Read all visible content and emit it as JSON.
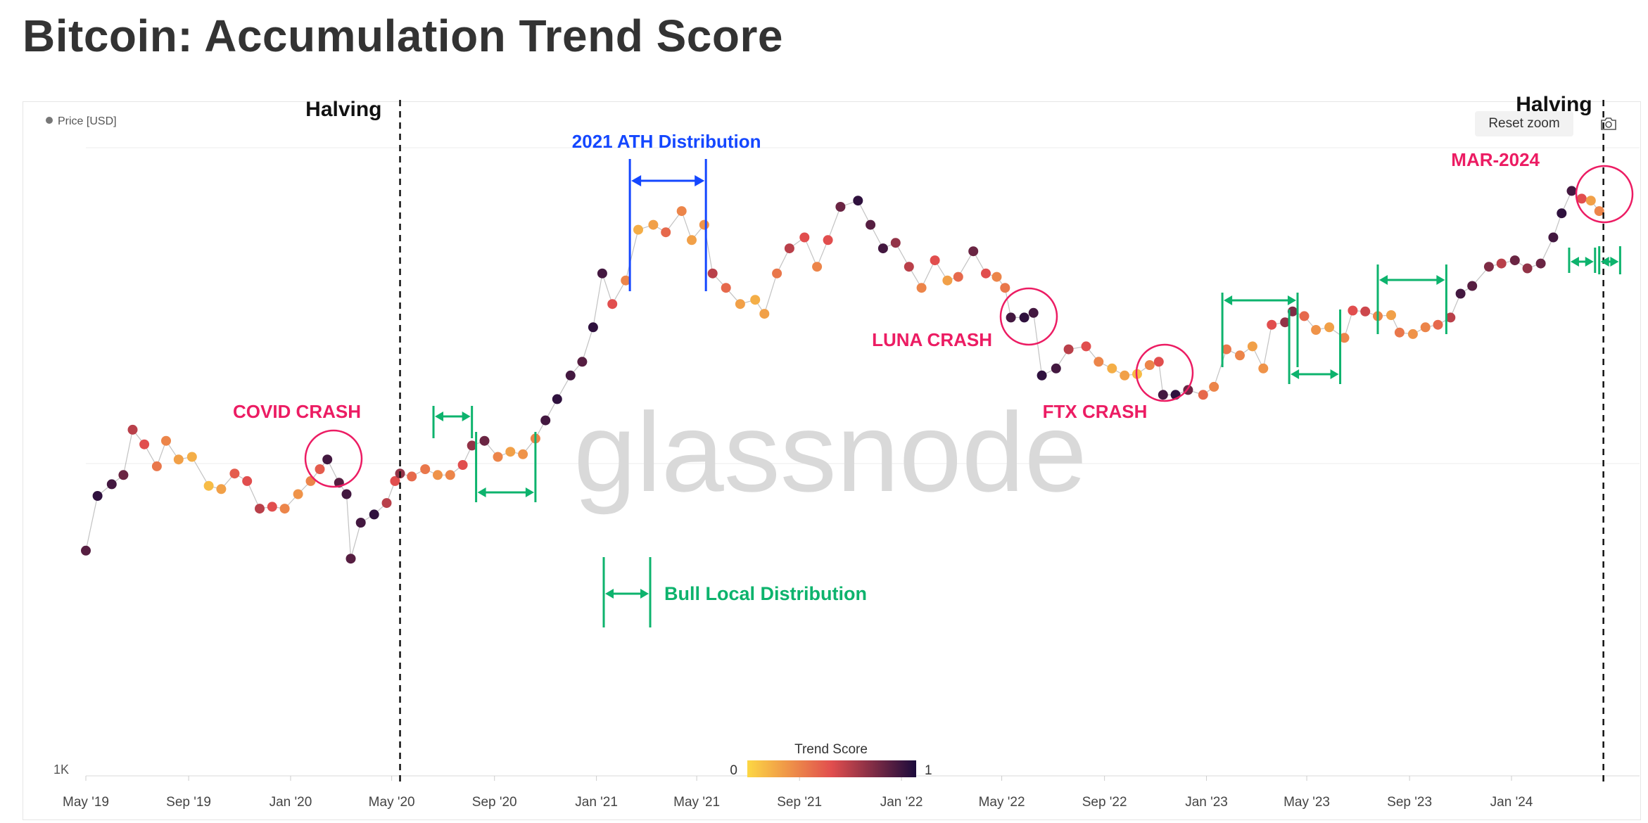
{
  "page": {
    "title": "Bitcoin: Accumulation Trend Score",
    "reset_zoom_label": "Reset zoom",
    "watermark": "glassnode"
  },
  "colors": {
    "halving": "#111111",
    "ath": "#1447ff",
    "bull": "#0db36d",
    "crash": "#ec1c63",
    "score_low": "#fcd744",
    "score_mid": "#e14e4e",
    "score_high": "#1b0a3c"
  },
  "chart_data": {
    "type": "scatter",
    "title": "Bitcoin: Accumulation Trend Score",
    "y_scale": "log",
    "y_tick_labels": [
      "1K"
    ],
    "legend": {
      "series_name": "Price [USD]",
      "position": "top-left"
    },
    "colorbar": {
      "title": "Trend Score",
      "min_label": "0",
      "max_label": "1",
      "position": "bottom-center"
    },
    "x_tick_labels": [
      "May '19",
      "Sep '19",
      "Jan '20",
      "May '20",
      "Sep '20",
      "Jan '21",
      "May '21",
      "Sep '21",
      "Jan '22",
      "May '22",
      "Sep '22",
      "Jan '23",
      "May '23",
      "Sep '23",
      "Jan '24"
    ],
    "series": [
      {
        "name": "Price [USD]",
        "points": [
          [
            "2019-05-01",
            5300,
            0.85
          ],
          [
            "2019-05-15",
            7900,
            0.95
          ],
          [
            "2019-06-01",
            8600,
            0.9
          ],
          [
            "2019-06-15",
            9200,
            0.8
          ],
          [
            "2019-06-26",
            12800,
            0.6
          ],
          [
            "2019-07-10",
            11500,
            0.5
          ],
          [
            "2019-07-25",
            9800,
            0.35
          ],
          [
            "2019-08-05",
            11800,
            0.3
          ],
          [
            "2019-08-20",
            10300,
            0.2
          ],
          [
            "2019-09-05",
            10500,
            0.15
          ],
          [
            "2019-09-25",
            8500,
            0.1
          ],
          [
            "2019-10-10",
            8300,
            0.2
          ],
          [
            "2019-10-26",
            9300,
            0.45
          ],
          [
            "2019-11-10",
            8800,
            0.5
          ],
          [
            "2019-11-25",
            7200,
            0.6
          ],
          [
            "2019-12-10",
            7300,
            0.5
          ],
          [
            "2019-12-25",
            7200,
            0.3
          ],
          [
            "2020-01-10",
            8000,
            0.25
          ],
          [
            "2020-01-25",
            8800,
            0.3
          ],
          [
            "2020-02-05",
            9600,
            0.45
          ],
          [
            "2020-02-14",
            10300,
            0.9
          ],
          [
            "2020-02-28",
            8700,
            0.85
          ],
          [
            "2020-03-08",
            8000,
            0.9
          ],
          [
            "2020-03-13",
            5000,
            0.85
          ],
          [
            "2020-03-25",
            6500,
            0.9
          ],
          [
            "2020-04-10",
            6900,
            0.95
          ],
          [
            "2020-04-25",
            7500,
            0.6
          ],
          [
            "2020-05-05",
            8800,
            0.5
          ],
          [
            "2020-05-11",
            9300,
            0.7
          ],
          [
            "2020-05-25",
            9100,
            0.4
          ],
          [
            "2020-06-10",
            9600,
            0.35
          ],
          [
            "2020-06-25",
            9200,
            0.25
          ],
          [
            "2020-07-10",
            9200,
            0.3
          ],
          [
            "2020-07-25",
            9900,
            0.5
          ],
          [
            "2020-08-05",
            11400,
            0.7
          ],
          [
            "2020-08-20",
            11800,
            0.8
          ],
          [
            "2020-09-05",
            10500,
            0.3
          ],
          [
            "2020-09-20",
            10900,
            0.2
          ],
          [
            "2020-10-05",
            10700,
            0.25
          ],
          [
            "2020-10-20",
            12000,
            0.3
          ],
          [
            "2020-11-01",
            13700,
            0.9
          ],
          [
            "2020-11-15",
            16000,
            0.95
          ],
          [
            "2020-12-01",
            19000,
            0.9
          ],
          [
            "2020-12-15",
            21000,
            0.85
          ],
          [
            "2020-12-28",
            27000,
            0.95
          ],
          [
            "2021-01-08",
            40000,
            0.9
          ],
          [
            "2021-01-20",
            32000,
            0.5
          ],
          [
            "2021-02-05",
            38000,
            0.3
          ],
          [
            "2021-02-20",
            55000,
            0.15
          ],
          [
            "2021-03-10",
            57000,
            0.2
          ],
          [
            "2021-03-25",
            54000,
            0.4
          ],
          [
            "2021-04-13",
            63000,
            0.3
          ],
          [
            "2021-04-25",
            51000,
            0.2
          ],
          [
            "2021-05-10",
            57000,
            0.25
          ],
          [
            "2021-05-20",
            40000,
            0.6
          ],
          [
            "2021-06-05",
            36000,
            0.4
          ],
          [
            "2021-06-22",
            32000,
            0.2
          ],
          [
            "2021-07-10",
            33000,
            0.15
          ],
          [
            "2021-07-21",
            29800,
            0.2
          ],
          [
            "2021-08-05",
            40000,
            0.35
          ],
          [
            "2021-08-20",
            48000,
            0.6
          ],
          [
            "2021-09-07",
            52000,
            0.5
          ],
          [
            "2021-09-22",
            42000,
            0.3
          ],
          [
            "2021-10-05",
            51000,
            0.5
          ],
          [
            "2021-10-20",
            65000,
            0.8
          ],
          [
            "2021-11-10",
            68000,
            0.95
          ],
          [
            "2021-11-25",
            57000,
            0.85
          ],
          [
            "2021-12-10",
            48000,
            0.9
          ],
          [
            "2021-12-25",
            50000,
            0.7
          ],
          [
            "2022-01-10",
            42000,
            0.6
          ],
          [
            "2022-01-25",
            36000,
            0.3
          ],
          [
            "2022-02-10",
            44000,
            0.5
          ],
          [
            "2022-02-25",
            38000,
            0.2
          ],
          [
            "2022-03-10",
            39000,
            0.4
          ],
          [
            "2022-03-28",
            47000,
            0.8
          ],
          [
            "2022-04-12",
            40000,
            0.5
          ],
          [
            "2022-04-25",
            39000,
            0.3
          ],
          [
            "2022-05-05",
            36000,
            0.35
          ],
          [
            "2022-05-12",
            29000,
            0.9
          ],
          [
            "2022-05-28",
            29000,
            0.95
          ],
          [
            "2022-06-08",
            30000,
            0.9
          ],
          [
            "2022-06-18",
            19000,
            0.95
          ],
          [
            "2022-07-05",
            20000,
            0.9
          ],
          [
            "2022-07-20",
            23000,
            0.6
          ],
          [
            "2022-08-10",
            23500,
            0.5
          ],
          [
            "2022-08-25",
            21000,
            0.3
          ],
          [
            "2022-09-10",
            20000,
            0.15
          ],
          [
            "2022-09-25",
            19000,
            0.2
          ],
          [
            "2022-10-10",
            19200,
            0.1
          ],
          [
            "2022-10-25",
            20500,
            0.3
          ],
          [
            "2022-11-05",
            21000,
            0.5
          ],
          [
            "2022-11-10",
            16500,
            0.9
          ],
          [
            "2022-11-25",
            16500,
            0.95
          ],
          [
            "2022-12-10",
            17100,
            0.8
          ],
          [
            "2022-12-28",
            16500,
            0.4
          ],
          [
            "2023-01-10",
            17500,
            0.3
          ],
          [
            "2023-01-25",
            23000,
            0.35
          ],
          [
            "2023-02-10",
            22000,
            0.3
          ],
          [
            "2023-02-25",
            23500,
            0.2
          ],
          [
            "2023-03-10",
            20000,
            0.25
          ],
          [
            "2023-03-20",
            27500,
            0.5
          ],
          [
            "2023-04-05",
            28000,
            0.7
          ],
          [
            "2023-04-14",
            30300,
            0.75
          ],
          [
            "2023-04-28",
            29300,
            0.4
          ],
          [
            "2023-05-12",
            26500,
            0.25
          ],
          [
            "2023-05-28",
            27000,
            0.2
          ],
          [
            "2023-06-15",
            25000,
            0.3
          ],
          [
            "2023-06-25",
            30500,
            0.5
          ],
          [
            "2023-07-10",
            30300,
            0.55
          ],
          [
            "2023-07-25",
            29300,
            0.3
          ],
          [
            "2023-08-10",
            29500,
            0.2
          ],
          [
            "2023-08-20",
            26000,
            0.35
          ],
          [
            "2023-09-05",
            25700,
            0.25
          ],
          [
            "2023-09-20",
            27000,
            0.3
          ],
          [
            "2023-10-05",
            27500,
            0.4
          ],
          [
            "2023-10-20",
            29000,
            0.6
          ],
          [
            "2023-11-01",
            34500,
            0.9
          ],
          [
            "2023-11-15",
            36500,
            0.85
          ],
          [
            "2023-12-05",
            42000,
            0.75
          ],
          [
            "2023-12-20",
            43000,
            0.6
          ],
          [
            "2024-01-05",
            44000,
            0.8
          ],
          [
            "2024-01-20",
            41500,
            0.7
          ],
          [
            "2024-02-05",
            43000,
            0.8
          ],
          [
            "2024-02-20",
            52000,
            0.9
          ],
          [
            "2024-03-01",
            62000,
            0.95
          ],
          [
            "2024-03-13",
            73000,
            0.9
          ],
          [
            "2024-03-25",
            69000,
            0.5
          ],
          [
            "2024-04-05",
            68000,
            0.2
          ],
          [
            "2024-04-15",
            63000,
            0.3
          ]
        ]
      }
    ],
    "annotations": [
      {
        "text": "Halving",
        "type": "vline",
        "date": "2020-05-11"
      },
      {
        "text": "Halving",
        "type": "vline",
        "date": "2024-04-20"
      },
      {
        "text": "2021 ATH Distribution",
        "type": "range",
        "start": "2021-02-10",
        "end": "2021-05-12"
      },
      {
        "text": "Bull Local Distribution",
        "type": "legend-range"
      },
      {
        "text": "COVID CRASH",
        "type": "circle",
        "date": "2020-02-28"
      },
      {
        "text": "LUNA CRASH",
        "type": "circle",
        "date": "2022-05-20"
      },
      {
        "text": "FTX CRASH",
        "type": "circle",
        "date": "2022-11-15"
      },
      {
        "text": "MAR-2024",
        "type": "circle",
        "date": "2024-03-25"
      }
    ],
    "bull_distribution_ranges": [
      [
        "2020-06-20",
        "2020-08-05"
      ],
      [
        "2020-08-10",
        "2020-10-20"
      ],
      [
        "2023-01-20",
        "2023-04-20"
      ],
      [
        "2023-04-10",
        "2023-06-10"
      ],
      [
        "2023-07-25",
        "2023-10-15"
      ],
      [
        "2024-03-10",
        "2024-04-10"
      ],
      [
        "2024-04-15",
        "2024-05-10"
      ]
    ]
  }
}
